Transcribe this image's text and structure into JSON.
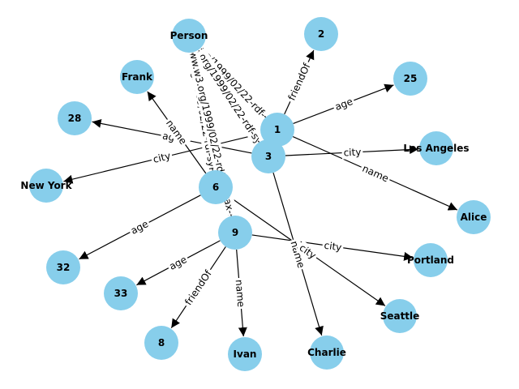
{
  "colors": {
    "node_fill": "#87ceeb",
    "edge": "#000000",
    "label_bg": "#ffffff",
    "text": "#000000"
  },
  "nodes": [
    {
      "id": "Person",
      "label": "Person"
    },
    {
      "id": "2",
      "label": "2"
    },
    {
      "id": "Frank",
      "label": "Frank"
    },
    {
      "id": "25",
      "label": "25"
    },
    {
      "id": "28",
      "label": "28"
    },
    {
      "id": "1",
      "label": "1"
    },
    {
      "id": "3",
      "label": "3"
    },
    {
      "id": "LosAngeles",
      "label": "Los Angeles"
    },
    {
      "id": "NewYork",
      "label": "New York"
    },
    {
      "id": "6",
      "label": "6"
    },
    {
      "id": "Alice",
      "label": "Alice"
    },
    {
      "id": "9",
      "label": "9"
    },
    {
      "id": "Portland",
      "label": "Portland"
    },
    {
      "id": "32",
      "label": "32"
    },
    {
      "id": "33",
      "label": "33"
    },
    {
      "id": "Seattle",
      "label": "Seattle"
    },
    {
      "id": "8",
      "label": "8"
    },
    {
      "id": "Ivan",
      "label": "Ivan"
    },
    {
      "id": "Charlie",
      "label": "Charlie"
    }
  ],
  "edges": [
    {
      "source": "1",
      "target": "Person",
      "label": "http://www.w3.org/1999/02/22-rdf-syntax-ns#type"
    },
    {
      "source": "3",
      "target": "Person",
      "label": "http://www.w3.org/1999/02/22-rdf-syntax-ns#type"
    },
    {
      "source": "6",
      "target": "Person",
      "label": "http://www.w3.org/1999/02/22-rdf-syntax-ns#type"
    },
    {
      "source": "9",
      "target": "Person",
      "label": "http://www.w3.org/1999/02/22-rdf-syntax-ns#type"
    },
    {
      "source": "1",
      "target": "2",
      "label": "friendOf"
    },
    {
      "source": "1",
      "target": "25",
      "label": "age"
    },
    {
      "source": "1",
      "target": "Alice",
      "label": "name"
    },
    {
      "source": "3",
      "target": "28",
      "label": "age"
    },
    {
      "source": "3",
      "target": "LosAngeles",
      "label": "city"
    },
    {
      "source": "3",
      "target": "Charlie",
      "label": "name"
    },
    {
      "source": "6",
      "target": "Frank",
      "label": "name"
    },
    {
      "source": "6",
      "target": "32",
      "label": "age"
    },
    {
      "source": "6",
      "target": "Seattle",
      "label": "city"
    },
    {
      "source": "1",
      "target": "NewYork",
      "label": "city"
    },
    {
      "source": "9",
      "target": "33",
      "label": "age"
    },
    {
      "source": "9",
      "target": "8",
      "label": "friendOf"
    },
    {
      "source": "9",
      "target": "Ivan",
      "label": "name"
    },
    {
      "source": "9",
      "target": "Portland",
      "label": "city"
    }
  ]
}
